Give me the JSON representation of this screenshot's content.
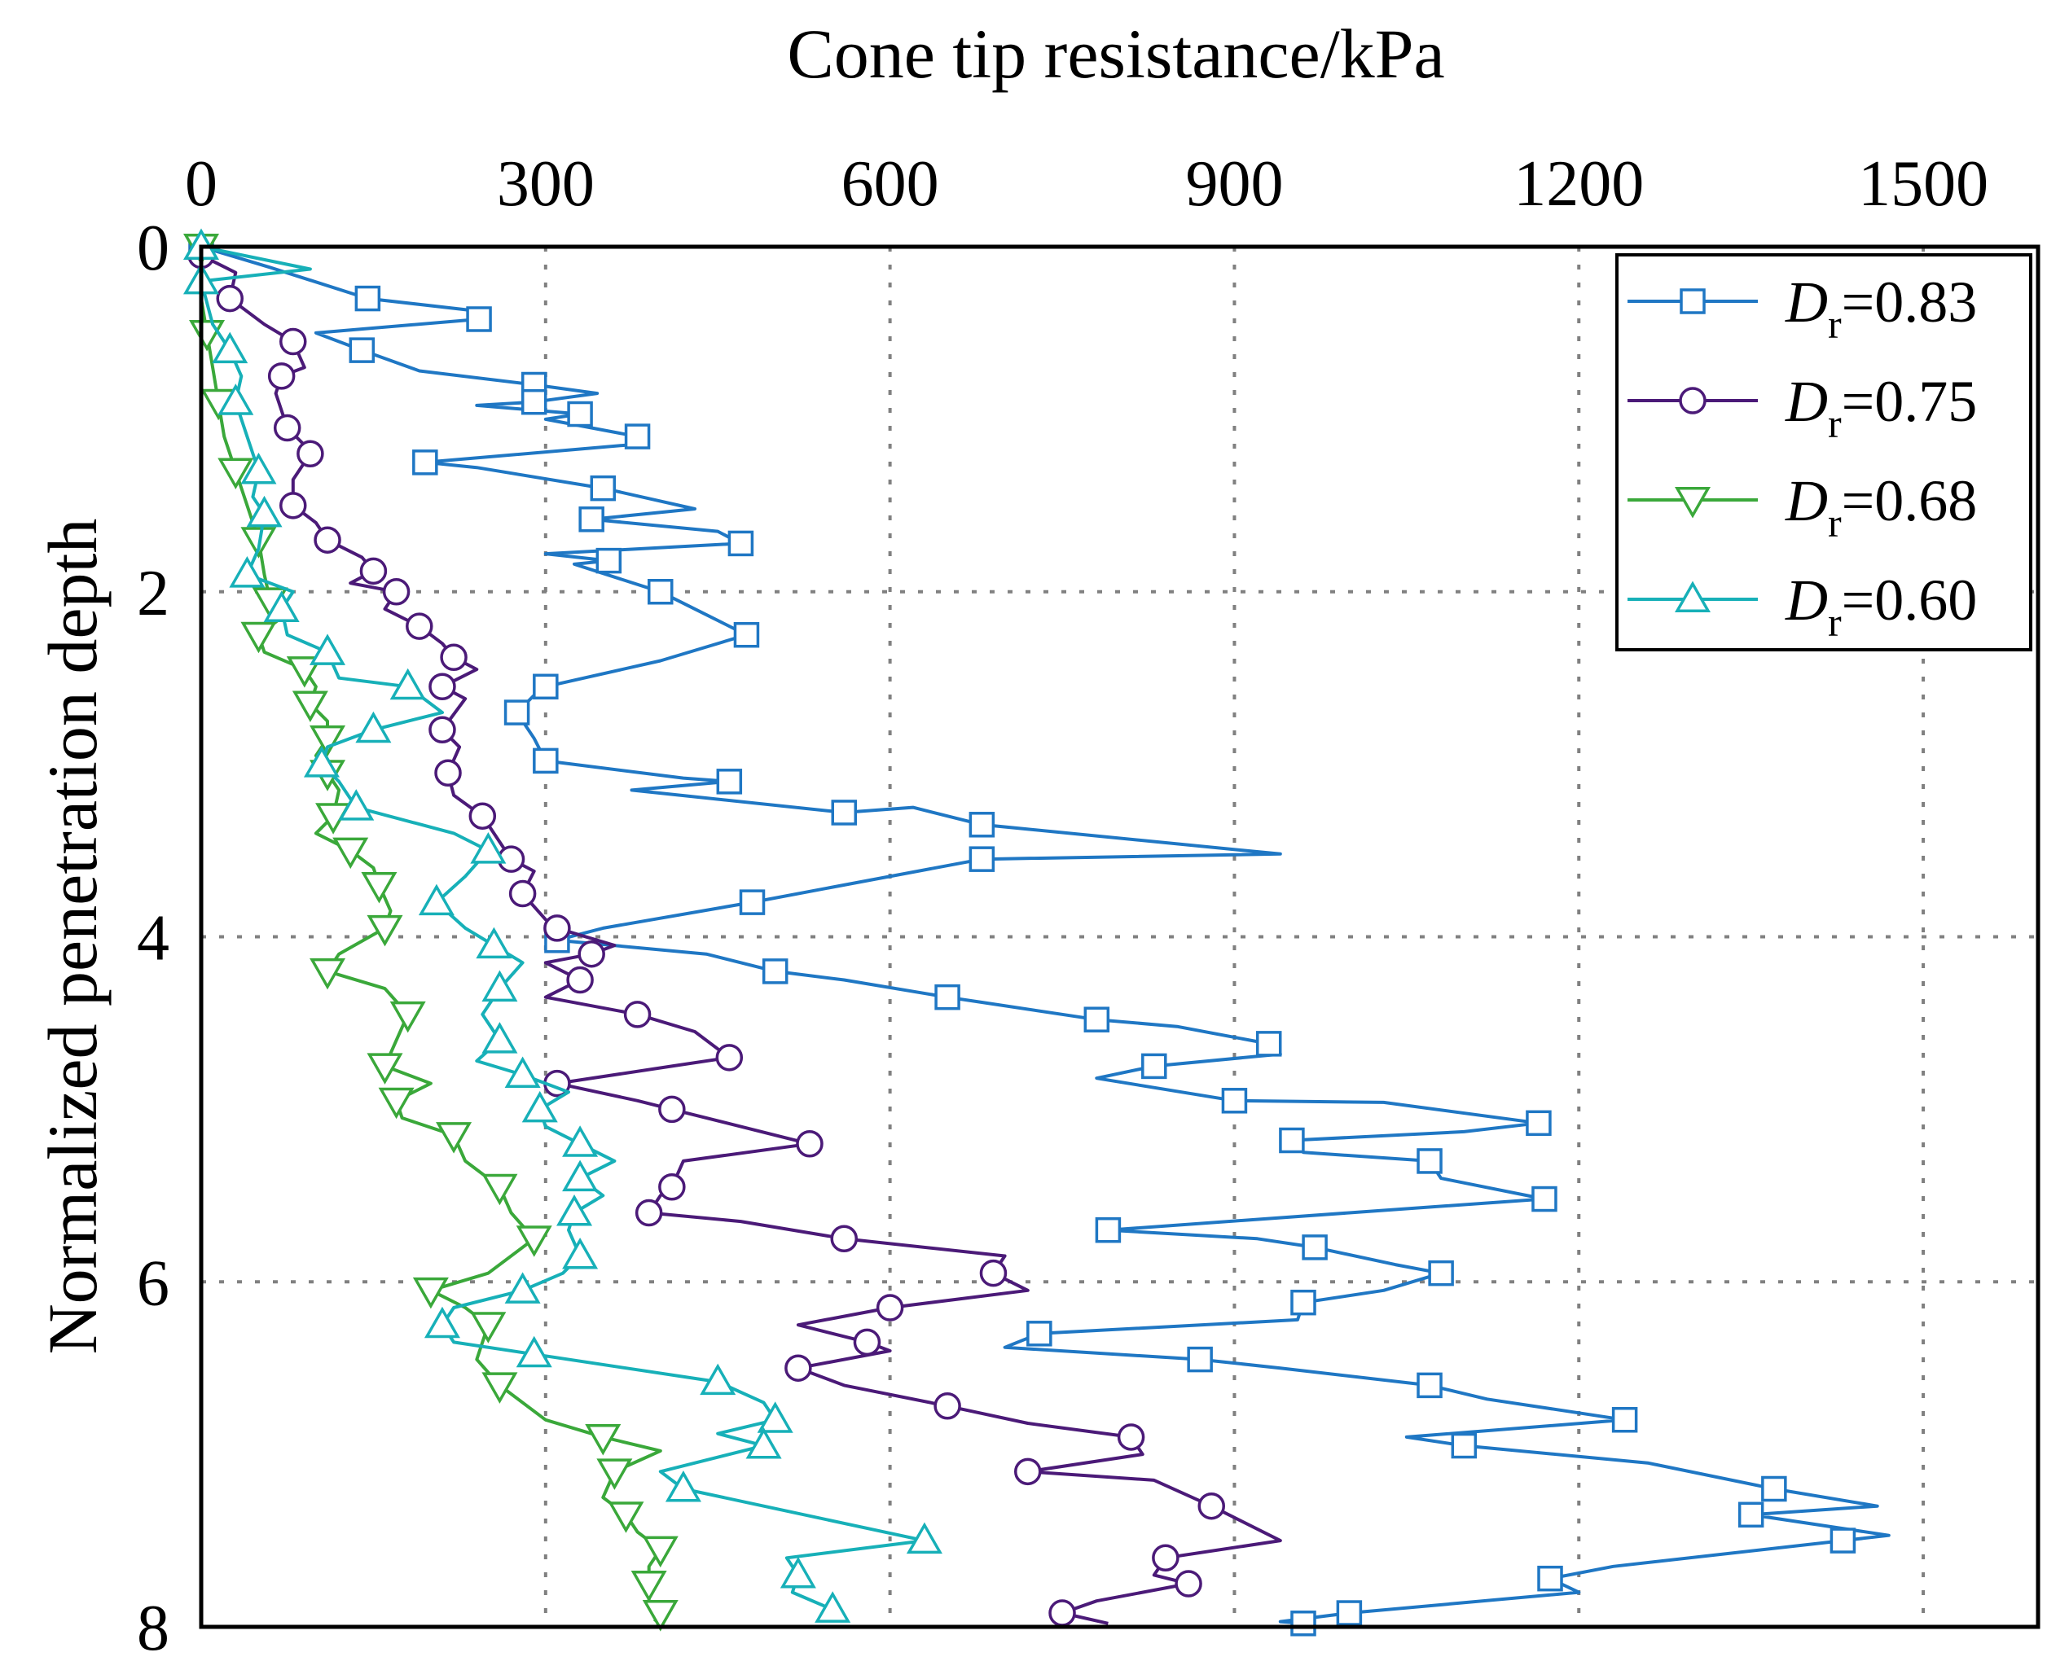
{
  "chart_data": {
    "type": "line",
    "title": "",
    "xlabel": "Cone tip resistance/kPa",
    "ylabel": "Normalized penetration depth",
    "xlim": [
      0,
      1600
    ],
    "ylim": [
      8,
      0
    ],
    "x_ticks": [
      "0",
      "300",
      "600",
      "900",
      "1200",
      "1500"
    ],
    "y_ticks": [
      "0",
      "2",
      "4",
      "6",
      "8"
    ],
    "x_axis_position": "top",
    "y_axis_inverted": true,
    "grid": true,
    "legend_position": "top-right",
    "series": [
      {
        "name": "Dr=0.83",
        "legend_main": "D",
        "legend_sub": "r",
        "legend_value": "=0.83",
        "color": "#1f77c4",
        "marker": "square",
        "points": [
          [
            0,
            0.0
          ],
          [
            60,
            0.12
          ],
          [
            145,
            0.3
          ],
          [
            250,
            0.38
          ],
          [
            242,
            0.42
          ],
          [
            100,
            0.5
          ],
          [
            140,
            0.6
          ],
          [
            190,
            0.72
          ],
          [
            290,
            0.8
          ],
          [
            345,
            0.85
          ],
          [
            290,
            0.9
          ],
          [
            240,
            0.92
          ],
          [
            330,
            0.97
          ],
          [
            300,
            1.0
          ],
          [
            380,
            1.1
          ],
          [
            370,
            1.15
          ],
          [
            195,
            1.25
          ],
          [
            240,
            1.28
          ],
          [
            350,
            1.4
          ],
          [
            430,
            1.52
          ],
          [
            340,
            1.58
          ],
          [
            450,
            1.65
          ],
          [
            470,
            1.72
          ],
          [
            300,
            1.78
          ],
          [
            355,
            1.82
          ],
          [
            325,
            1.84
          ],
          [
            400,
            2.0
          ],
          [
            430,
            2.1
          ],
          [
            475,
            2.25
          ],
          [
            400,
            2.4
          ],
          [
            300,
            2.55
          ],
          [
            290,
            2.6
          ],
          [
            275,
            2.7
          ],
          [
            290,
            2.85
          ],
          [
            300,
            2.98
          ],
          [
            420,
            3.08
          ],
          [
            460,
            3.1
          ],
          [
            375,
            3.15
          ],
          [
            560,
            3.28
          ],
          [
            620,
            3.25
          ],
          [
            680,
            3.35
          ],
          [
            940,
            3.52
          ],
          [
            680,
            3.55
          ],
          [
            560,
            3.7
          ],
          [
            480,
            3.8
          ],
          [
            350,
            3.95
          ],
          [
            310,
            4.02
          ],
          [
            440,
            4.1
          ],
          [
            500,
            4.2
          ],
          [
            560,
            4.25
          ],
          [
            650,
            4.35
          ],
          [
            680,
            4.38
          ],
          [
            780,
            4.48
          ],
          [
            850,
            4.52
          ],
          [
            930,
            4.62
          ],
          [
            940,
            4.68
          ],
          [
            830,
            4.75
          ],
          [
            780,
            4.82
          ],
          [
            900,
            4.95
          ],
          [
            1030,
            4.96
          ],
          [
            1165,
            5.08
          ],
          [
            1100,
            5.13
          ],
          [
            950,
            5.18
          ],
          [
            960,
            5.25
          ],
          [
            1070,
            5.3
          ],
          [
            1080,
            5.4
          ],
          [
            1170,
            5.52
          ],
          [
            1000,
            5.6
          ],
          [
            790,
            5.7
          ],
          [
            920,
            5.75
          ],
          [
            970,
            5.8
          ],
          [
            1040,
            5.9
          ],
          [
            1080,
            5.95
          ],
          [
            1030,
            6.05
          ],
          [
            960,
            6.12
          ],
          [
            955,
            6.22
          ],
          [
            730,
            6.3
          ],
          [
            700,
            6.38
          ],
          [
            870,
            6.45
          ],
          [
            940,
            6.5
          ],
          [
            1070,
            6.6
          ],
          [
            1120,
            6.68
          ],
          [
            1240,
            6.8
          ],
          [
            1050,
            6.9
          ],
          [
            1100,
            6.95
          ],
          [
            1260,
            7.05
          ],
          [
            1370,
            7.2
          ],
          [
            1460,
            7.3
          ],
          [
            1350,
            7.35
          ],
          [
            1470,
            7.47
          ],
          [
            1430,
            7.5
          ],
          [
            1230,
            7.65
          ],
          [
            1175,
            7.72
          ],
          [
            1200,
            7.8
          ],
          [
            1000,
            7.92
          ],
          [
            940,
            7.97
          ],
          [
            960,
            7.98
          ]
        ]
      },
      {
        "name": "Dr=0.75",
        "legend_main": "D",
        "legend_sub": "r",
        "legend_value": "=0.75",
        "color": "#4b1a78",
        "marker": "circle",
        "points": [
          [
            0,
            0.05
          ],
          [
            30,
            0.15
          ],
          [
            25,
            0.3
          ],
          [
            55,
            0.45
          ],
          [
            80,
            0.55
          ],
          [
            90,
            0.7
          ],
          [
            70,
            0.75
          ],
          [
            65,
            0.85
          ],
          [
            75,
            1.05
          ],
          [
            90,
            1.15
          ],
          [
            95,
            1.2
          ],
          [
            80,
            1.35
          ],
          [
            80,
            1.5
          ],
          [
            100,
            1.6
          ],
          [
            110,
            1.7
          ],
          [
            140,
            1.8
          ],
          [
            150,
            1.88
          ],
          [
            130,
            1.95
          ],
          [
            170,
            2.0
          ],
          [
            160,
            2.1
          ],
          [
            190,
            2.2
          ],
          [
            210,
            2.3
          ],
          [
            220,
            2.38
          ],
          [
            240,
            2.45
          ],
          [
            210,
            2.55
          ],
          [
            230,
            2.62
          ],
          [
            210,
            2.8
          ],
          [
            225,
            2.9
          ],
          [
            215,
            3.05
          ],
          [
            220,
            3.18
          ],
          [
            245,
            3.3
          ],
          [
            260,
            3.45
          ],
          [
            270,
            3.55
          ],
          [
            290,
            3.62
          ],
          [
            280,
            3.75
          ],
          [
            300,
            3.9
          ],
          [
            310,
            3.95
          ],
          [
            360,
            4.05
          ],
          [
            340,
            4.1
          ],
          [
            300,
            4.15
          ],
          [
            330,
            4.25
          ],
          [
            300,
            4.35
          ],
          [
            380,
            4.45
          ],
          [
            430,
            4.55
          ],
          [
            460,
            4.7
          ],
          [
            410,
            4.75
          ],
          [
            310,
            4.85
          ],
          [
            380,
            4.95
          ],
          [
            410,
            5.0
          ],
          [
            470,
            5.1
          ],
          [
            530,
            5.2
          ],
          [
            420,
            5.3
          ],
          [
            410,
            5.45
          ],
          [
            400,
            5.5
          ],
          [
            390,
            5.6
          ],
          [
            470,
            5.65
          ],
          [
            560,
            5.75
          ],
          [
            700,
            5.85
          ],
          [
            690,
            5.95
          ],
          [
            720,
            6.05
          ],
          [
            600,
            6.15
          ],
          [
            520,
            6.25
          ],
          [
            580,
            6.35
          ],
          [
            600,
            6.4
          ],
          [
            520,
            6.5
          ],
          [
            560,
            6.6
          ],
          [
            650,
            6.72
          ],
          [
            720,
            6.82
          ],
          [
            810,
            6.9
          ],
          [
            820,
            7.0
          ],
          [
            720,
            7.1
          ],
          [
            830,
            7.15
          ],
          [
            880,
            7.3
          ],
          [
            940,
            7.5
          ],
          [
            840,
            7.6
          ],
          [
            830,
            7.7
          ],
          [
            860,
            7.75
          ],
          [
            780,
            7.85
          ],
          [
            750,
            7.92
          ],
          [
            790,
            7.98
          ]
        ]
      },
      {
        "name": "Dr=0.68",
        "legend_main": "D",
        "legend_sub": "r",
        "legend_value": "=0.68",
        "color": "#3aa83a",
        "marker": "triangle-down",
        "points": [
          [
            0,
            0.0
          ],
          [
            0,
            0.3
          ],
          [
            5,
            0.5
          ],
          [
            10,
            0.7
          ],
          [
            15,
            0.9
          ],
          [
            20,
            1.1
          ],
          [
            30,
            1.3
          ],
          [
            40,
            1.5
          ],
          [
            50,
            1.7
          ],
          [
            55,
            1.9
          ],
          [
            60,
            2.05
          ],
          [
            70,
            2.15
          ],
          [
            50,
            2.25
          ],
          [
            55,
            2.35
          ],
          [
            90,
            2.45
          ],
          [
            100,
            2.55
          ],
          [
            95,
            2.65
          ],
          [
            110,
            2.75
          ],
          [
            110,
            2.85
          ],
          [
            100,
            2.95
          ],
          [
            110,
            3.05
          ],
          [
            120,
            3.15
          ],
          [
            115,
            3.3
          ],
          [
            100,
            3.4
          ],
          [
            130,
            3.5
          ],
          [
            150,
            3.6
          ],
          [
            155,
            3.7
          ],
          [
            165,
            3.85
          ],
          [
            160,
            3.95
          ],
          [
            120,
            4.1
          ],
          [
            110,
            4.2
          ],
          [
            160,
            4.3
          ],
          [
            180,
            4.45
          ],
          [
            170,
            4.6
          ],
          [
            160,
            4.75
          ],
          [
            200,
            4.85
          ],
          [
            170,
            4.95
          ],
          [
            175,
            5.05
          ],
          [
            220,
            5.15
          ],
          [
            230,
            5.3
          ],
          [
            260,
            5.45
          ],
          [
            270,
            5.6
          ],
          [
            290,
            5.75
          ],
          [
            250,
            5.95
          ],
          [
            200,
            6.05
          ],
          [
            230,
            6.15
          ],
          [
            250,
            6.25
          ],
          [
            240,
            6.45
          ],
          [
            260,
            6.6
          ],
          [
            300,
            6.8
          ],
          [
            350,
            6.9
          ],
          [
            400,
            6.98
          ],
          [
            360,
            7.1
          ],
          [
            350,
            7.25
          ],
          [
            370,
            7.35
          ],
          [
            380,
            7.45
          ],
          [
            400,
            7.55
          ],
          [
            390,
            7.65
          ],
          [
            390,
            7.75
          ],
          [
            390,
            7.85
          ],
          [
            400,
            7.92
          ],
          [
            395,
            7.97
          ]
        ]
      },
      {
        "name": "Dr=0.60",
        "legend_main": "D",
        "legend_sub": "r",
        "legend_value": "=0.60",
        "color": "#17b0b8",
        "marker": "triangle-up",
        "points": [
          [
            0,
            0.0
          ],
          [
            95,
            0.13
          ],
          [
            0,
            0.2
          ],
          [
            10,
            0.45
          ],
          [
            25,
            0.6
          ],
          [
            35,
            0.75
          ],
          [
            30,
            0.9
          ],
          [
            40,
            1.1
          ],
          [
            50,
            1.3
          ],
          [
            45,
            1.45
          ],
          [
            55,
            1.55
          ],
          [
            50,
            1.75
          ],
          [
            40,
            1.9
          ],
          [
            80,
            2.0
          ],
          [
            70,
            2.1
          ],
          [
            75,
            2.25
          ],
          [
            110,
            2.35
          ],
          [
            120,
            2.5
          ],
          [
            180,
            2.55
          ],
          [
            210,
            2.7
          ],
          [
            150,
            2.8
          ],
          [
            110,
            2.9
          ],
          [
            105,
            3.0
          ],
          [
            120,
            3.1
          ],
          [
            135,
            3.25
          ],
          [
            220,
            3.4
          ],
          [
            250,
            3.5
          ],
          [
            230,
            3.65
          ],
          [
            205,
            3.8
          ],
          [
            230,
            3.95
          ],
          [
            255,
            4.05
          ],
          [
            280,
            4.15
          ],
          [
            260,
            4.3
          ],
          [
            245,
            4.45
          ],
          [
            260,
            4.6
          ],
          [
            240,
            4.72
          ],
          [
            280,
            4.8
          ],
          [
            320,
            4.9
          ],
          [
            295,
            5.0
          ],
          [
            300,
            5.1
          ],
          [
            330,
            5.2
          ],
          [
            360,
            5.3
          ],
          [
            330,
            5.4
          ],
          [
            350,
            5.5
          ],
          [
            325,
            5.6
          ],
          [
            320,
            5.7
          ],
          [
            330,
            5.85
          ],
          [
            315,
            5.95
          ],
          [
            280,
            6.05
          ],
          [
            220,
            6.15
          ],
          [
            210,
            6.25
          ],
          [
            220,
            6.35
          ],
          [
            290,
            6.42
          ],
          [
            370,
            6.5
          ],
          [
            450,
            6.58
          ],
          [
            490,
            6.7
          ],
          [
            500,
            6.8
          ],
          [
            450,
            6.88
          ],
          [
            490,
            6.95
          ],
          [
            400,
            7.1
          ],
          [
            420,
            7.2
          ],
          [
            490,
            7.3
          ],
          [
            630,
            7.5
          ],
          [
            510,
            7.6
          ],
          [
            520,
            7.7
          ],
          [
            515,
            7.8
          ],
          [
            550,
            7.9
          ],
          [
            555,
            7.97
          ]
        ]
      }
    ]
  }
}
